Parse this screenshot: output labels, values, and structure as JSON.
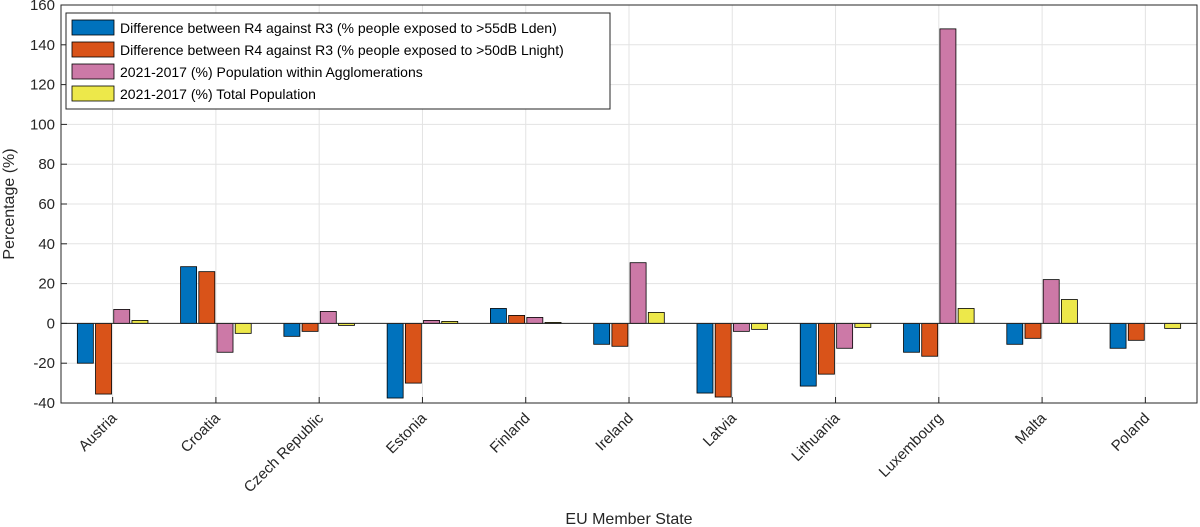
{
  "chart_data": {
    "type": "bar",
    "xlabel": "EU Member State",
    "ylabel": "Percentage (%)",
    "ylim": [
      -40,
      160
    ],
    "yticks": [
      -40,
      -20,
      0,
      20,
      40,
      60,
      80,
      100,
      120,
      140,
      160
    ],
    "grid": true,
    "legend_position": "top-left",
    "categories": [
      "Austria",
      "Croatia",
      "Czech Republic",
      "Estonia",
      "Finland",
      "Ireland",
      "Latvia",
      "Lithuania",
      "Luxembourg",
      "Malta",
      "Poland"
    ],
    "series": [
      {
        "name": "Difference between R4 against R3 (% people exposed to >55dB Lden)",
        "color": "#0072BD",
        "values": [
          -20,
          28.5,
          -6.5,
          -37.5,
          7.5,
          -10.5,
          -35,
          -31.5,
          -14.5,
          -10.5,
          -12.5
        ]
      },
      {
        "name": "Difference between R4 against R3 (% people exposed to >50dB Lnight)",
        "color": "#D95319",
        "values": [
          -35.5,
          26,
          -4,
          -30,
          4,
          -11.5,
          -37,
          -25.5,
          -16.5,
          -7.5,
          -8.5
        ]
      },
      {
        "name": "2021-2017 (%) Population within Agglomerations",
        "color": "#CC79A7",
        "values": [
          7,
          -14.5,
          6,
          1.5,
          3,
          30.5,
          -4,
          -12.5,
          148,
          22,
          0
        ]
      },
      {
        "name": "2021-2017 (%) Total Population",
        "color": "#EDE84A",
        "values": [
          1.5,
          -5,
          -1,
          1,
          0.5,
          5.5,
          -3,
          -2,
          7.5,
          12,
          -2.5
        ]
      }
    ]
  }
}
